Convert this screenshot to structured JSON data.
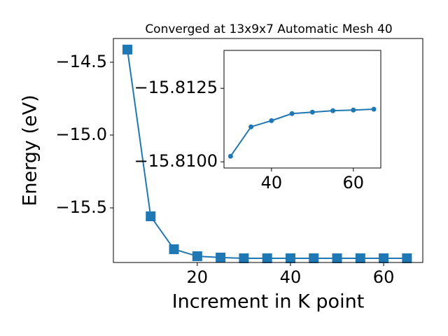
{
  "chart_data": [
    {
      "type": "line",
      "title": "Converged at 13x9x7 Automatic Mesh 40",
      "x_label": "Increment in K point",
      "y_label": "Energy (eV)",
      "x": [
        5,
        10,
        15,
        20,
        25,
        30,
        35,
        40,
        45,
        50,
        55,
        60,
        65
      ],
      "series": [
        {
          "color": "#1f77b4",
          "marker": "square",
          "values": [
            -14.413,
            -15.558,
            -15.784,
            -15.832,
            -15.841,
            -15.846,
            -15.846,
            -15.846,
            -15.846,
            -15.846,
            -15.846,
            -15.846,
            -15.846
          ]
        }
      ],
      "xlim": [
        2,
        68.4
      ],
      "ylim": [
        -15.875,
        -14.337
      ],
      "xticks": [
        20,
        40,
        60
      ],
      "yticks": [
        {
          "value": -14.5,
          "label": "−14.5"
        },
        {
          "value": -15.0,
          "label": "−15.0"
        },
        {
          "value": -15.5,
          "label": "−15.5"
        }
      ]
    },
    {
      "type": "line",
      "x": [
        30,
        35,
        40,
        45,
        50,
        55,
        60,
        65
      ],
      "series": [
        {
          "color": "#1f77b4",
          "marker": "circle",
          "values": [
            -15.81019,
            -15.81119,
            -15.8114,
            -15.81164,
            -15.81169,
            -15.81174,
            -15.81176,
            -15.81179
          ]
        }
      ],
      "xlim": [
        28.4,
        66.7
      ],
      "ylim": [
        -15.80979,
        -15.81379
      ],
      "xticks": [
        40,
        60
      ],
      "yticks": [
        {
          "value": -15.8125,
          "label": "−15.8125"
        },
        {
          "value": -15.81,
          "label": "−15.8100"
        }
      ]
    }
  ]
}
